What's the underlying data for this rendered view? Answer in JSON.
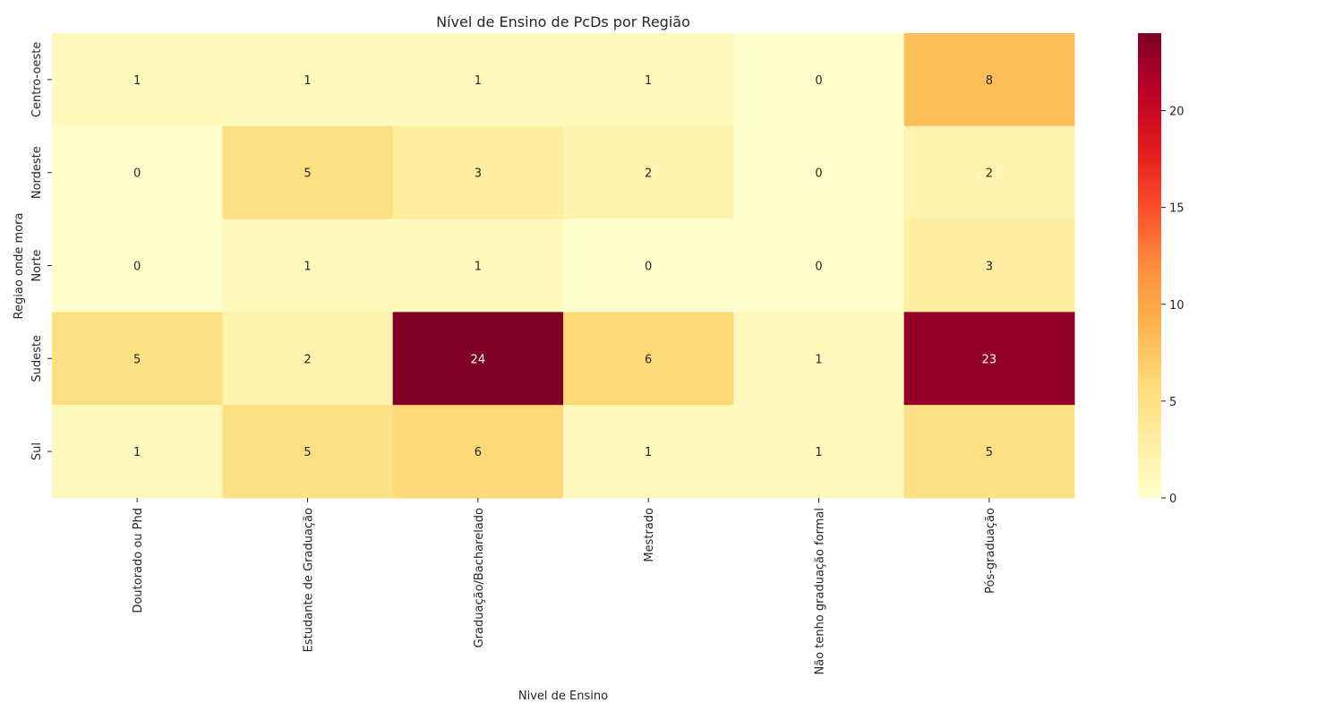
{
  "chart_data": {
    "type": "heatmap",
    "title": "Nível de Ensino de PcDs por Região",
    "xlabel": "Nivel de Ensino",
    "ylabel": "Regiao onde mora",
    "x_categories": [
      "Doutorado ou Phd",
      "Estudante de Graduação",
      "Graduação/Bacharelado",
      "Mestrado",
      "Não tenho graduação formal",
      "Pós-graduação"
    ],
    "y_categories": [
      "Centro-oeste",
      "Nordeste",
      "Norte",
      "Sudeste",
      "Sul"
    ],
    "values": [
      [
        1,
        1,
        1,
        1,
        0,
        8
      ],
      [
        0,
        5,
        3,
        2,
        0,
        2
      ],
      [
        0,
        1,
        1,
        0,
        0,
        3
      ],
      [
        5,
        2,
        24,
        6,
        1,
        23
      ],
      [
        1,
        5,
        6,
        1,
        1,
        5
      ]
    ],
    "colormap": "YlOrRd",
    "vmin": 0,
    "vmax": 24,
    "colorbar_ticks": [
      0,
      5,
      10,
      15,
      20
    ],
    "annotations": true
  }
}
